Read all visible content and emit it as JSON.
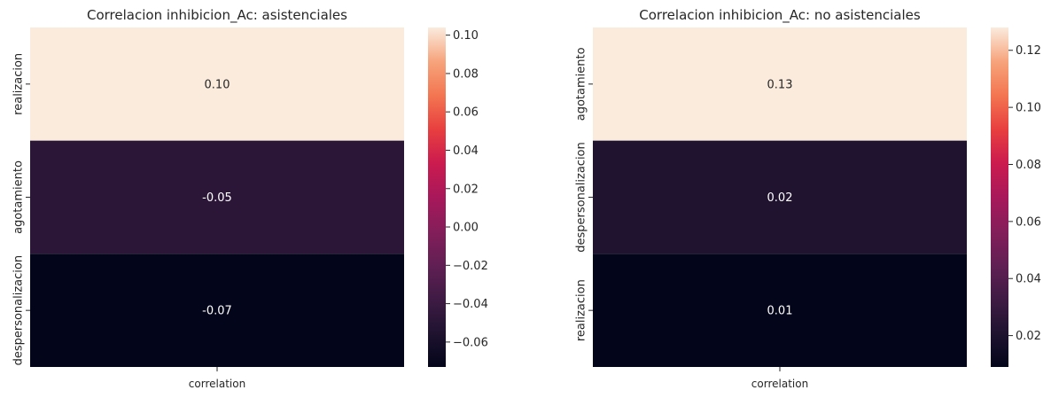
{
  "chart_data": [
    {
      "type": "heatmap",
      "title": "Correlacion inhibicion_Ac: asistenciales",
      "columns": [
        "correlation"
      ],
      "rows": [
        "realizacion",
        "agotamiento",
        "despersonalizacion"
      ],
      "values": [
        0.104,
        -0.048,
        -0.073
      ],
      "cell_labels": [
        "0.10",
        "-0.05",
        "-0.07"
      ],
      "colorbar": {
        "range": [
          -0.073,
          0.104
        ],
        "ticks": [
          0.1,
          0.08,
          0.06,
          0.04,
          0.02,
          0.0,
          -0.02,
          -0.04,
          -0.06
        ],
        "tick_labels": [
          "0.10",
          "0.08",
          "0.06",
          "0.04",
          "0.02",
          "0.00",
          "−0.02",
          "−0.04",
          "−0.06"
        ]
      },
      "colormap": "rocket"
    },
    {
      "type": "heatmap",
      "title": "Correlacion inhibicion_Ac: no asistenciales",
      "columns": [
        "correlation"
      ],
      "rows": [
        "agotamiento",
        "despersonalizacion",
        "realizacion"
      ],
      "values": [
        0.128,
        0.021,
        0.009
      ],
      "cell_labels": [
        "0.13",
        "0.02",
        "0.01"
      ],
      "colorbar": {
        "range": [
          0.009,
          0.128
        ],
        "ticks": [
          0.12,
          0.1,
          0.08,
          0.06,
          0.04,
          0.02
        ],
        "tick_labels": [
          "0.12",
          "0.10",
          "0.08",
          "0.06",
          "0.04",
          "0.02"
        ]
      },
      "colormap": "rocket"
    }
  ]
}
